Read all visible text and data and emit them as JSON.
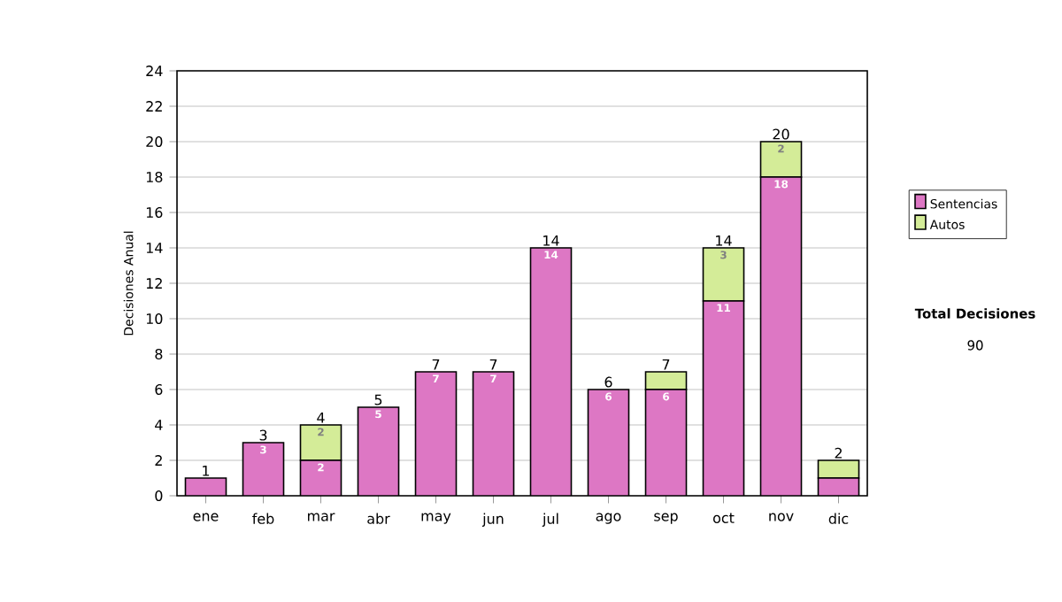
{
  "chart_data": {
    "type": "bar",
    "stacked": true,
    "ylabel": "Decisiones Anual",
    "categories": [
      "ene",
      "feb",
      "mar",
      "abr",
      "may",
      "jun",
      "jul",
      "ago",
      "sep",
      "oct",
      "nov",
      "dic"
    ],
    "series": [
      {
        "name": "Sentencias",
        "color": "#dd77c4",
        "values": [
          1,
          3,
          2,
          5,
          7,
          7,
          14,
          6,
          6,
          11,
          18,
          1
        ],
        "value_labels": [
          null,
          "3",
          "2",
          "5",
          "7",
          "7",
          "14",
          "6",
          "6",
          "11",
          "18",
          null
        ]
      },
      {
        "name": "Autos",
        "color": "#d4ec98",
        "values": [
          0,
          0,
          2,
          0,
          0,
          0,
          0,
          0,
          1,
          3,
          2,
          1
        ],
        "value_labels": [
          null,
          null,
          "2",
          null,
          null,
          null,
          null,
          null,
          null,
          "3",
          "2",
          null
        ]
      }
    ],
    "totals": [
      "1",
      "3",
      "4",
      "5",
      "7",
      "7",
      "14",
      "6",
      "7",
      "14",
      "20",
      "2"
    ],
    "ylim": [
      0,
      24
    ],
    "yticks": [
      0,
      2,
      4,
      6,
      8,
      10,
      12,
      14,
      16,
      18,
      20,
      22,
      24
    ],
    "grid": "y",
    "legend": "right",
    "annotations": [
      "Total Decisiones",
      "90"
    ]
  }
}
